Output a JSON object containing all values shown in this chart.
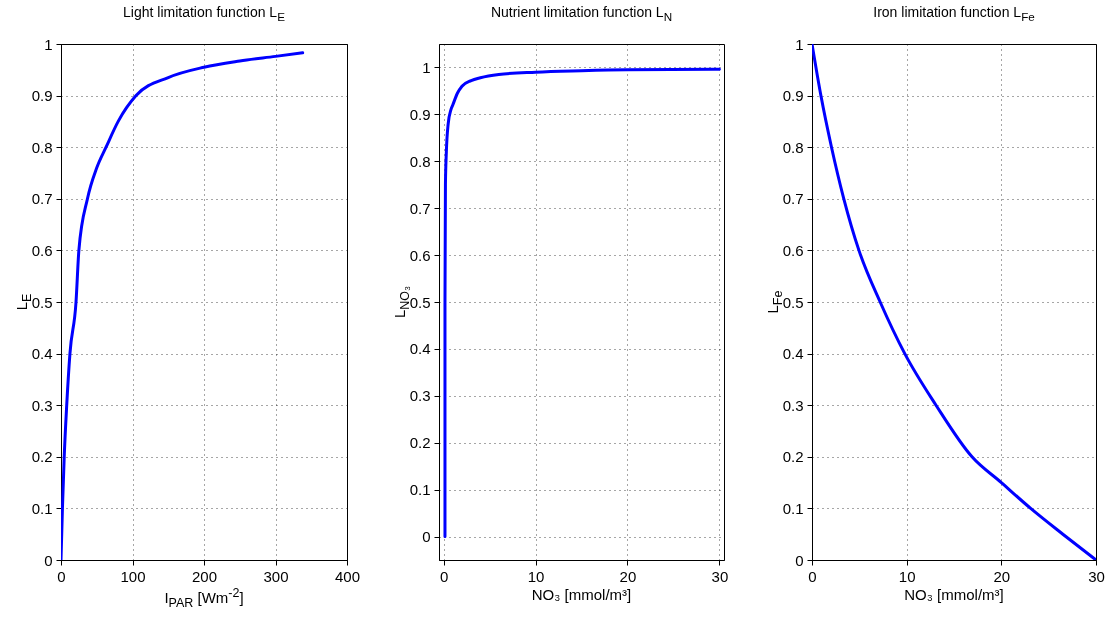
{
  "chart_data": [
    {
      "type": "line",
      "title": "Light limitation function L$_{E}$",
      "xlabel": "I$_{PAR}$ [Wm$^{-2}$]",
      "ylabel": "L$_{E}$",
      "x": [
        0,
        2,
        4.5,
        8,
        12.5,
        21,
        25,
        37,
        50,
        63,
        80,
        105,
        150,
        200,
        250,
        300,
        338
      ],
      "series": [
        {
          "color": "#0000ff",
          "values": [
            0,
            0.1,
            0.2,
            0.3,
            0.4,
            0.5,
            0.6,
            0.7,
            0.76,
            0.8,
            0.85,
            0.9,
            0.935,
            0.955,
            0.967,
            0.976,
            0.983
          ]
        }
      ],
      "xlim": [
        0,
        400
      ],
      "ylim": [
        0,
        1
      ],
      "xticks": [
        0,
        100,
        200,
        300,
        400
      ],
      "yticks": [
        0,
        0.1,
        0.2,
        0.3,
        0.4,
        0.5,
        0.6,
        0.7,
        0.8,
        0.9,
        1
      ],
      "grid": true
    },
    {
      "type": "line",
      "title": "Nutrient limitation function L$_{N}$",
      "xlabel": "NO₃ [mmol/m³]",
      "ylabel": "L$_{NO₃}$",
      "x": [
        0.15,
        0.15,
        0.2,
        0.3,
        0.5,
        0.8,
        1,
        1.5,
        2,
        3,
        4,
        6,
        10,
        15,
        20,
        30
      ],
      "series": [
        {
          "color": "#0000ff",
          "values": [
            0,
            0.5,
            0.75,
            0.82,
            0.88,
            0.91,
            0.92,
            0.945,
            0.96,
            0.972,
            0.978,
            0.985,
            0.99,
            0.993,
            0.995,
            0.996
          ]
        }
      ],
      "xlim": [
        -0.5,
        30.5
      ],
      "ylim": [
        -0.05,
        1.05
      ],
      "xticks": [
        0,
        10,
        20,
        30
      ],
      "yticks": [
        0,
        0.1,
        0.2,
        0.3,
        0.4,
        0.5,
        0.6,
        0.7,
        0.8,
        0.9,
        1
      ],
      "grid": true
    },
    {
      "type": "line",
      "title": "Iron limitation function L$_{Fe}$",
      "xlabel": "NO₃ [mmol/m³]",
      "ylabel": "L$_{Fe}$",
      "x": [
        0,
        0.94,
        2.06,
        3.36,
        4.96,
        7.2,
        9.8,
        13.1,
        16.9,
        20,
        23.1,
        26.5,
        30
      ],
      "series": [
        {
          "color": "#0000ff",
          "values": [
            1,
            0.9,
            0.8,
            0.7,
            0.6,
            0.5,
            0.4,
            0.3,
            0.2,
            0.15,
            0.1,
            0.05,
            0
          ]
        }
      ],
      "xlim": [
        0,
        30
      ],
      "ylim": [
        0,
        1
      ],
      "xticks": [
        0,
        10,
        20,
        30
      ],
      "yticks": [
        0,
        0.1,
        0.2,
        0.3,
        0.4,
        0.5,
        0.6,
        0.7,
        0.8,
        0.9,
        1
      ],
      "grid": true
    }
  ]
}
